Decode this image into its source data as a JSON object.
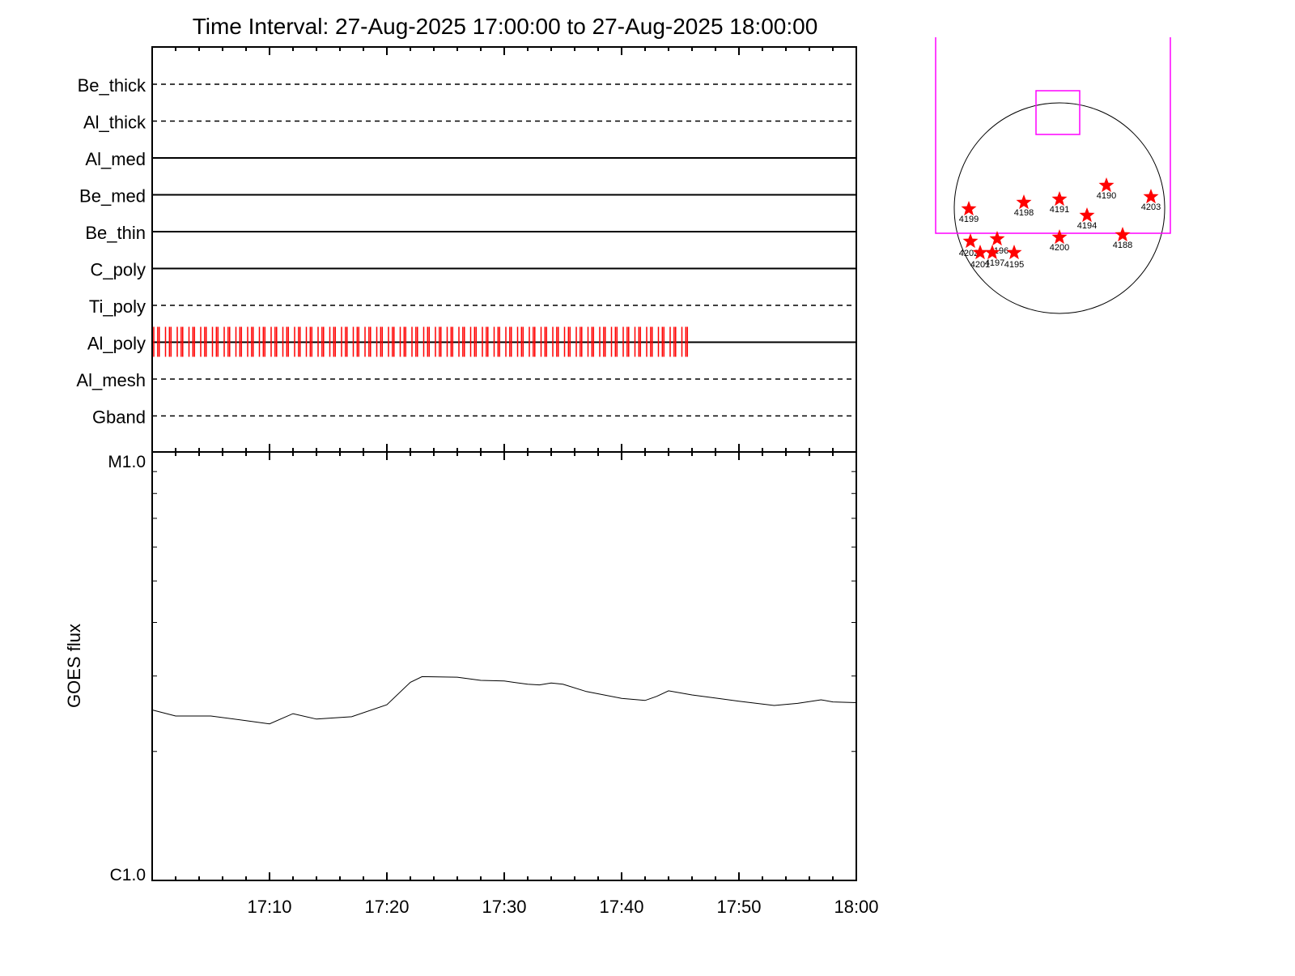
{
  "chart_data": [
    {
      "type": "timeline",
      "title": "Time Interval: 27-Aug-2025 17:00:00 to 27-Aug-2025 18:00:00",
      "filters": [
        {
          "name": "Be_thick",
          "style": "dashed"
        },
        {
          "name": "Al_thick",
          "style": "dashed"
        },
        {
          "name": "Al_med",
          "style": "solid"
        },
        {
          "name": "Be_med",
          "style": "solid"
        },
        {
          "name": "Be_thin",
          "style": "solid"
        },
        {
          "name": "C_poly",
          "style": "solid"
        },
        {
          "name": "Ti_poly",
          "style": "dashed"
        },
        {
          "name": "Al_poly",
          "style": "solid"
        },
        {
          "name": "Al_mesh",
          "style": "dashed"
        },
        {
          "name": "Gband",
          "style": "dashed"
        }
      ],
      "exposures": {
        "filter": "Al_poly",
        "color": "#ff0000",
        "minutes": [
          "17:00",
          "17:01",
          "17:02",
          "17:03",
          "17:04",
          "17:05",
          "17:06",
          "17:07",
          "17:08",
          "17:09",
          "17:10",
          "17:11",
          "17:12",
          "17:13",
          "17:14",
          "17:15",
          "17:16",
          "17:17",
          "17:18",
          "17:19",
          "17:20",
          "17:21",
          "17:22",
          "17:23",
          "17:24",
          "17:25",
          "17:26",
          "17:27",
          "17:28",
          "17:29",
          "17:30",
          "17:31",
          "17:32",
          "17:33",
          "17:34",
          "17:35",
          "17:36",
          "17:37",
          "17:38",
          "17:39",
          "17:40",
          "17:41",
          "17:42",
          "17:43",
          "17:44",
          "17:45"
        ],
        "seconds": [
          0,
          20,
          28
        ]
      }
    },
    {
      "type": "line",
      "ylabel": "GOES flux",
      "yscale": "log",
      "ylim": [
        1e-06,
        1e-05
      ],
      "ytick_labels": [
        "C1.0",
        "M1.0"
      ],
      "xlim": [
        "17:00",
        "18:00"
      ],
      "xtick_labels": [
        "17:10",
        "17:20",
        "17:30",
        "17:40",
        "17:50",
        "18:00"
      ],
      "x": [
        "17:00",
        "17:02",
        "17:05",
        "17:08",
        "17:10",
        "17:12",
        "17:14",
        "17:17",
        "17:20",
        "17:22",
        "17:23",
        "17:26",
        "17:28",
        "17:30",
        "17:32",
        "17:33",
        "17:34",
        "17:35",
        "17:37",
        "17:40",
        "17:42",
        "17:43",
        "17:44",
        "17:46",
        "17:50",
        "17:53",
        "17:55",
        "17:57",
        "17:58",
        "18:00"
      ],
      "y": [
        2.5e-06,
        2.42e-06,
        2.42e-06,
        2.36e-06,
        2.32e-06,
        2.45e-06,
        2.38e-06,
        2.41e-06,
        2.57e-06,
        2.9e-06,
        2.99e-06,
        2.98e-06,
        2.93e-06,
        2.92e-06,
        2.87e-06,
        2.86e-06,
        2.89e-06,
        2.87e-06,
        2.76e-06,
        2.66e-06,
        2.63e-06,
        2.69e-06,
        2.77e-06,
        2.71e-06,
        2.62e-06,
        2.56e-06,
        2.59e-06,
        2.64e-06,
        2.61e-06,
        2.6e-06
      ]
    },
    {
      "type": "scatter",
      "kind": "solar-disk-map",
      "marker_color": "#ff0000",
      "fov_color": "#ff00ff",
      "regions": [
        "4199",
        "4198",
        "4191",
        "4190",
        "4203",
        "4194",
        "4202",
        "4196",
        "4197",
        "4201",
        "4195",
        "4200",
        "4188"
      ]
    }
  ]
}
